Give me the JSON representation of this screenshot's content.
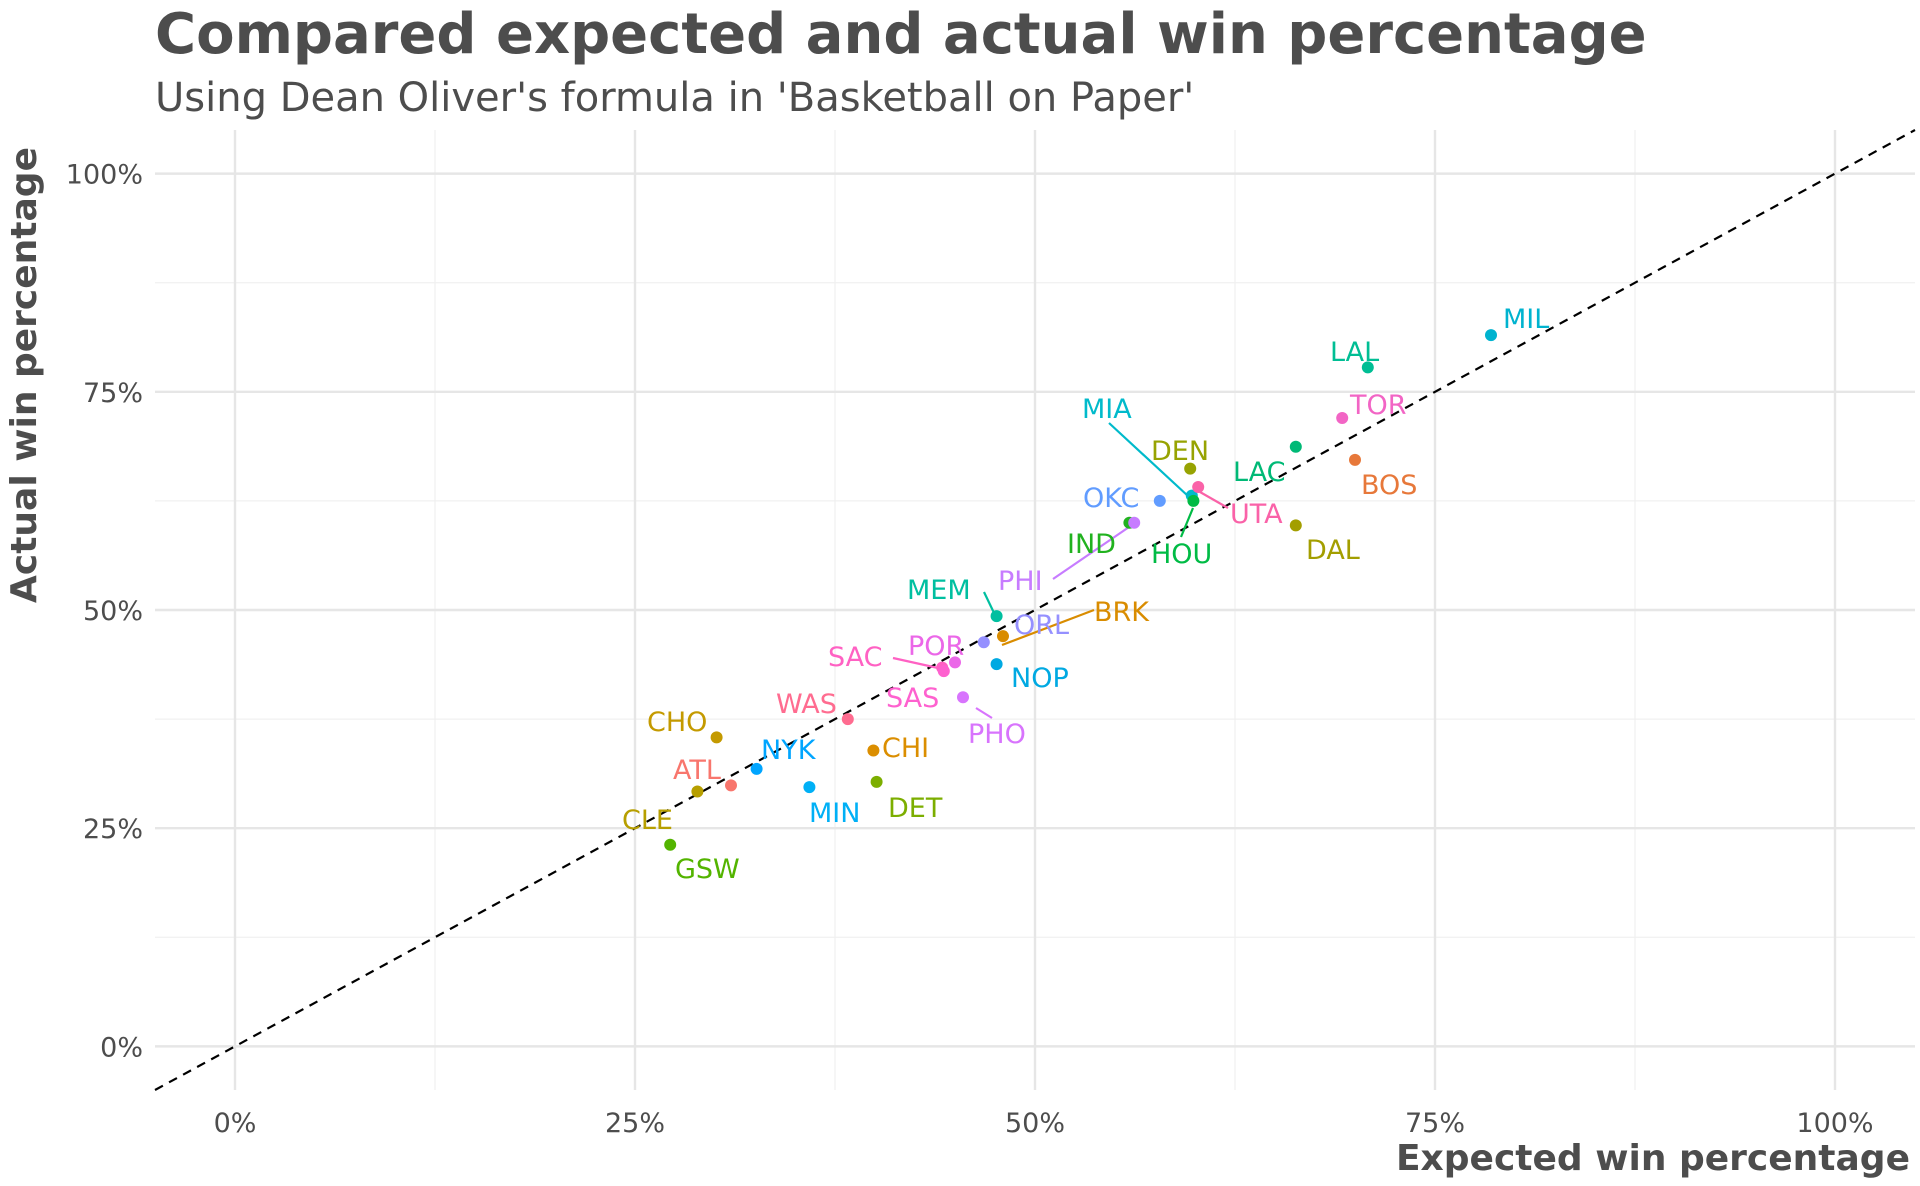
{
  "chart_data": {
    "type": "scatter",
    "title": "Compared expected and actual win percentage",
    "subtitle": "Using Dean Oliver's formula in 'Basketball on Paper'",
    "xlabel": "Expected win percentage",
    "ylabel": "Actual win percentage",
    "xlim": [
      -0.05,
      1.05
    ],
    "ylim": [
      -0.05,
      1.05
    ],
    "x_ticks": [
      {
        "value": 0,
        "label": "0%"
      },
      {
        "value": 0.25,
        "label": "25%"
      },
      {
        "value": 0.5,
        "label": "50%"
      },
      {
        "value": 0.75,
        "label": "75%"
      },
      {
        "value": 1,
        "label": "100%"
      }
    ],
    "y_ticks": [
      {
        "value": 0,
        "label": "0%"
      },
      {
        "value": 0.25,
        "label": "25%"
      },
      {
        "value": 0.5,
        "label": "50%"
      },
      {
        "value": 0.75,
        "label": "75%"
      },
      {
        "value": 1,
        "label": "100%"
      }
    ],
    "reference_line": {
      "type": "y=x",
      "style": "dashed",
      "color": "#000000"
    },
    "grid": true,
    "legend": "none",
    "points": [
      {
        "team": "MIL",
        "x": 0.785,
        "y": 0.815,
        "color": "#00B3CF"
      },
      {
        "team": "LAL",
        "x": 0.708,
        "y": 0.778,
        "color": "#00BE94"
      },
      {
        "team": "TOR",
        "x": 0.692,
        "y": 0.72,
        "color": "#F265C5"
      },
      {
        "team": "LAC",
        "x": 0.663,
        "y": 0.687,
        "color": "#00B976"
      },
      {
        "team": "BOS",
        "x": 0.7,
        "y": 0.672,
        "color": "#E7783A"
      },
      {
        "team": "DEN",
        "x": 0.597,
        "y": 0.662,
        "color": "#97A302"
      },
      {
        "team": "MIA",
        "x": 0.598,
        "y": 0.631,
        "color": "#00BACB"
      },
      {
        "team": "UTA",
        "x": 0.602,
        "y": 0.641,
        "color": "#FA62A8"
      },
      {
        "team": "HOU",
        "x": 0.599,
        "y": 0.625,
        "color": "#00BB45"
      },
      {
        "team": "OKC",
        "x": 0.578,
        "y": 0.625,
        "color": "#619CFF"
      },
      {
        "team": "DAL",
        "x": 0.663,
        "y": 0.597,
        "color": "#A39E00"
      },
      {
        "team": "IND",
        "x": 0.559,
        "y": 0.6,
        "color": "#21B21F"
      },
      {
        "team": "PHI",
        "x": 0.562,
        "y": 0.6,
        "color": "#C77CFF"
      },
      {
        "team": "MEM",
        "x": 0.476,
        "y": 0.493,
        "color": "#00BFA0"
      },
      {
        "team": "BRK",
        "x": 0.48,
        "y": 0.47,
        "color": "#D98C00"
      },
      {
        "team": "ORL",
        "x": 0.468,
        "y": 0.463,
        "color": "#9590FF"
      },
      {
        "team": "POR",
        "x": 0.45,
        "y": 0.44,
        "color": "#EB67E8"
      },
      {
        "team": "NOP",
        "x": 0.476,
        "y": 0.438,
        "color": "#00A9E2"
      },
      {
        "team": "SAC",
        "x": 0.442,
        "y": 0.434,
        "color": "#FF61C3"
      },
      {
        "team": "SAS",
        "x": 0.443,
        "y": 0.43,
        "color": "#FE61CF"
      },
      {
        "team": "PHO",
        "x": 0.455,
        "y": 0.4,
        "color": "#D874FD"
      },
      {
        "team": "WAS",
        "x": 0.383,
        "y": 0.375,
        "color": "#FF6C90"
      },
      {
        "team": "CHO",
        "x": 0.301,
        "y": 0.354,
        "color": "#C49A00"
      },
      {
        "team": "CHI",
        "x": 0.399,
        "y": 0.339,
        "color": "#DB8E00"
      },
      {
        "team": "NYK",
        "x": 0.326,
        "y": 0.318,
        "color": "#00A5FF"
      },
      {
        "team": "DET",
        "x": 0.401,
        "y": 0.303,
        "color": "#7CAE00"
      },
      {
        "team": "MIN",
        "x": 0.359,
        "y": 0.297,
        "color": "#00B0F6"
      },
      {
        "team": "ATL",
        "x": 0.31,
        "y": 0.299,
        "color": "#F8766D"
      },
      {
        "team": "CLE",
        "x": 0.289,
        "y": 0.292,
        "color": "#B79F00"
      },
      {
        "team": "GSW",
        "x": 0.272,
        "y": 0.231,
        "color": "#53B400"
      }
    ]
  }
}
